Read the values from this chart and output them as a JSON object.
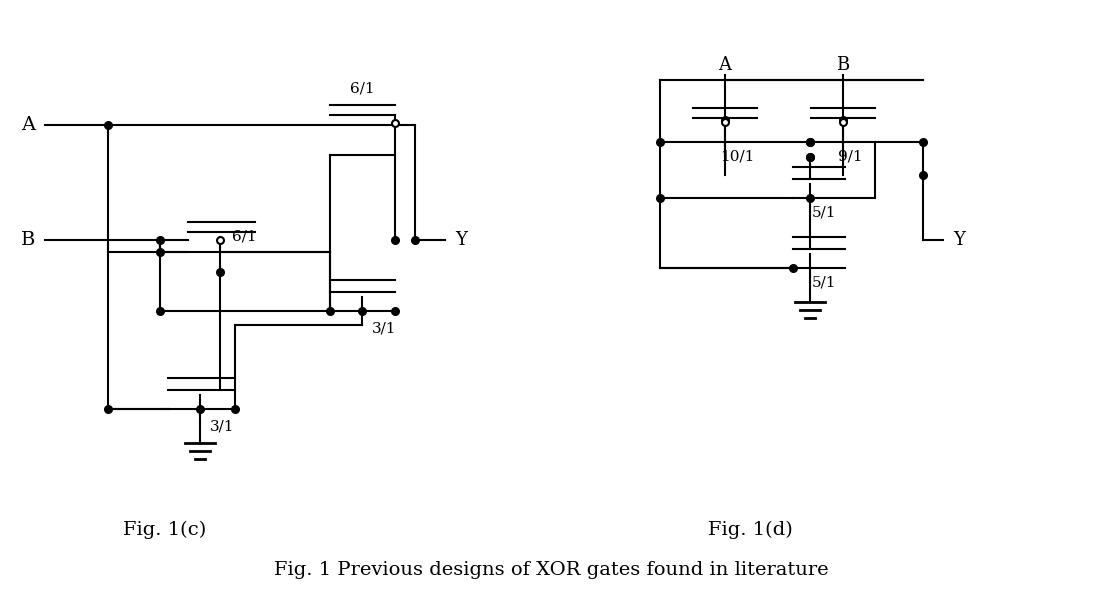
{
  "fig_c_label": "Fig. 1(c)",
  "fig_d_label": "Fig. 1(d)",
  "bottom_label": "Fig. 1 Previous designs of XOR gates found in literature",
  "background": "#ffffff",
  "line_color": "#000000",
  "lw": 1.5
}
